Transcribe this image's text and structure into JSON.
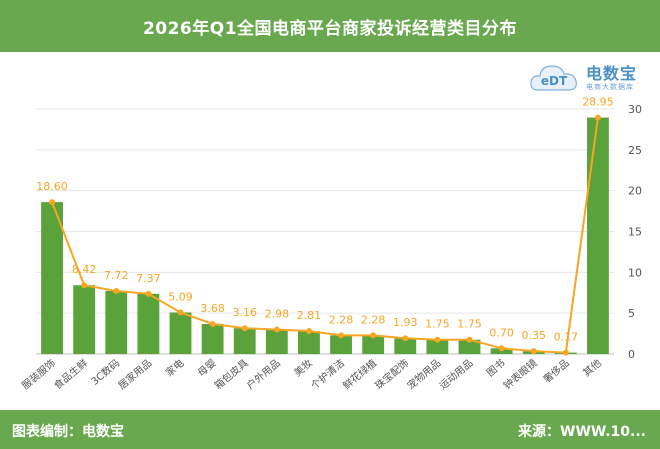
{
  "header": {
    "title": "2026年Q1全国电商平台商家投诉经营类目分布"
  },
  "logo": {
    "badge_text": "eDT",
    "name": "电数宝",
    "sub": "电商大数据库",
    "percent": "%"
  },
  "footer": {
    "left": "图表编制：电数宝",
    "right": "来源：WWW.10..."
  },
  "colors": {
    "bar": "#5aa33a",
    "line": "#f5a623",
    "header": "#6aa84f",
    "grid": "#e6e6e6",
    "label": "#f5a623"
  },
  "chart_data": {
    "type": "bar+line",
    "title": "2026年Q1全国电商平台商家投诉经营类目分布",
    "categories": [
      "服装服饰",
      "食品生鲜",
      "3C数码",
      "居家用品",
      "家电",
      "母婴",
      "箱包皮具",
      "户外用品",
      "美妆",
      "个护清洁",
      "鲜花绿植",
      "珠宝配饰",
      "宠物用品",
      "运动用品",
      "图书",
      "钟表眼镜",
      "奢侈品",
      "其他"
    ],
    "series": [
      {
        "type": "bar",
        "values": [
          18.6,
          8.42,
          7.72,
          7.37,
          5.09,
          3.68,
          3.16,
          2.98,
          2.81,
          2.28,
          2.28,
          1.93,
          1.75,
          1.75,
          0.7,
          0.35,
          0.17,
          28.95
        ]
      },
      {
        "type": "line",
        "values": [
          18.6,
          8.42,
          7.72,
          7.37,
          5.09,
          3.68,
          3.16,
          2.98,
          2.81,
          2.28,
          2.28,
          1.93,
          1.75,
          1.75,
          0.7,
          0.35,
          0.17,
          28.95
        ]
      }
    ],
    "data_labels": [
      "18.60",
      "8.42",
      "7.72",
      "7.37",
      "5.09",
      "3.68",
      "3.16",
      "2.98",
      "2.81",
      "2.28",
      "2.28",
      "1.93",
      "1.75",
      "1.75",
      "0.70",
      "0.35",
      "0.17",
      "28.95"
    ],
    "y_ticks": [
      "0",
      "5",
      "10",
      "15",
      "20",
      "25",
      "30"
    ],
    "ylim": [
      0,
      30
    ],
    "y_axis_position": "right",
    "grid": true
  }
}
